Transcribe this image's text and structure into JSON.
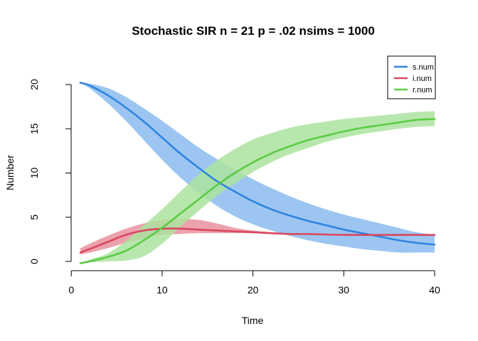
{
  "chart_data": {
    "type": "line",
    "title": "Stochastic SIR n = 21 p = .02 nsims = 1000",
    "xlabel": "Time",
    "ylabel": "Number",
    "xlim": [
      1,
      40
    ],
    "ylim": [
      0,
      20
    ],
    "x_ticks": [
      0,
      10,
      20,
      30,
      40
    ],
    "y_ticks": [
      0,
      5,
      10,
      15,
      20
    ],
    "legend_position": "top-right",
    "grid": false,
    "x": [
      1,
      2,
      4,
      6,
      8,
      10,
      12,
      14,
      16,
      18,
      20,
      22,
      24,
      26,
      28,
      30,
      32,
      34,
      36,
      38,
      40
    ],
    "series": [
      {
        "name": "s.num",
        "color": "#2E84E0",
        "band_color": "#8BBCEF",
        "values": [
          20.2,
          19.9,
          18.8,
          17.4,
          15.8,
          14.0,
          12.2,
          10.6,
          9.1,
          7.9,
          6.8,
          5.9,
          5.2,
          4.6,
          4.1,
          3.6,
          3.2,
          2.8,
          2.4,
          2.1,
          1.9
        ],
        "lower": [
          20.2,
          19.6,
          17.9,
          15.9,
          13.7,
          11.5,
          9.5,
          7.8,
          6.3,
          5.1,
          4.2,
          3.5,
          2.9,
          2.4,
          2.0,
          1.7,
          1.4,
          1.2,
          1.0,
          1.0,
          1.0
        ],
        "upper": [
          20.2,
          20.1,
          19.6,
          18.6,
          17.3,
          15.9,
          14.4,
          12.9,
          11.6,
          10.4,
          9.3,
          8.3,
          7.4,
          6.6,
          5.9,
          5.3,
          4.8,
          4.3,
          3.8,
          3.3,
          3.0
        ]
      },
      {
        "name": "i.num",
        "color": "#D9475F",
        "band_color": "#E7929F",
        "values": [
          1.0,
          1.4,
          2.2,
          3.0,
          3.5,
          3.7,
          3.7,
          3.6,
          3.5,
          3.4,
          3.3,
          3.2,
          3.1,
          3.1,
          3.05,
          3.0,
          3.0,
          3.0,
          3.0,
          3.0,
          3.0
        ],
        "lower": [
          0.8,
          1.0,
          1.5,
          2.1,
          2.6,
          3.0,
          3.1,
          3.2,
          3.2,
          3.2,
          3.2,
          3.1,
          3.1,
          3.0,
          3.0,
          3.0,
          3.0,
          3.0,
          3.0,
          2.9,
          2.9
        ],
        "upper": [
          1.5,
          2.0,
          2.9,
          3.7,
          4.3,
          4.7,
          4.8,
          4.7,
          4.3,
          3.8,
          3.5,
          3.3,
          3.2,
          3.1,
          3.1,
          3.0,
          3.0,
          3.0,
          3.0,
          3.0,
          3.0
        ]
      },
      {
        "name": "r.num",
        "color": "#5CCB46",
        "band_color": "#ABE39F",
        "values": [
          -0.2,
          0.0,
          0.5,
          1.2,
          2.4,
          3.8,
          5.4,
          7.0,
          8.6,
          10.0,
          11.2,
          12.2,
          13.0,
          13.7,
          14.2,
          14.7,
          15.1,
          15.4,
          15.7,
          16.0,
          16.1
        ],
        "lower": [
          -0.2,
          -0.1,
          0.0,
          0.1,
          0.6,
          2.0,
          3.9,
          5.7,
          7.4,
          8.8,
          10.1,
          11.2,
          12.1,
          12.8,
          13.5,
          14.0,
          14.4,
          14.7,
          15.0,
          15.2,
          15.3
        ],
        "upper": [
          -0.2,
          0.2,
          0.9,
          2.3,
          4.1,
          5.9,
          7.9,
          9.8,
          11.4,
          12.7,
          13.8,
          14.5,
          15.1,
          15.5,
          15.8,
          16.1,
          16.3,
          16.5,
          16.7,
          16.9,
          17.0
        ]
      }
    ]
  }
}
